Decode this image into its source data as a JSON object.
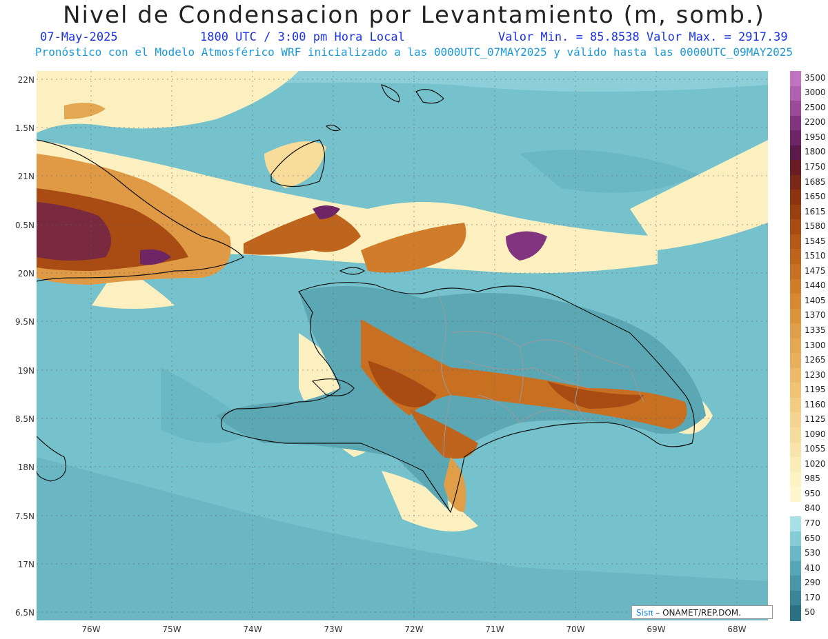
{
  "title": "Nivel de Condensacion por Levantamiento (m, somb.)",
  "date": "07-May-2025",
  "time": "1800 UTC / 3:00 pm Hora Local",
  "minmax": "Valor Min. = 85.8538  Valor Max. = 2917.39",
  "forecast": "Pronóstico con el Modelo Atmosférico WRF inicializado a las 0000UTC_07MAY2025 y válido hasta las  0000UTC_09MAY2025",
  "lat_labels": [
    "22N",
    "1.5N",
    "21N",
    "0.5N",
    "20N",
    "9.5N",
    "19N",
    "8.5N",
    "18N",
    "7.5N",
    "17N",
    "6.5N"
  ],
  "lon_labels": [
    "76W",
    "75W",
    "74W",
    "73W",
    "72W",
    "71W",
    "70W",
    "69W",
    "68W"
  ],
  "legend": {
    "levels": [
      "3500",
      "3000",
      "2500",
      "2200",
      "1950",
      "1800",
      "1750",
      "1685",
      "1650",
      "1615",
      "1580",
      "1545",
      "1510",
      "1475",
      "1440",
      "1405",
      "1370",
      "1335",
      "1300",
      "1265",
      "1230",
      "1195",
      "1160",
      "1125",
      "1090",
      "1055",
      "1020",
      "985",
      "950",
      "840",
      "770",
      "650",
      "530",
      "410",
      "290",
      "170",
      "50"
    ],
    "colors": [
      "#c074c0",
      "#b060b0",
      "#9a4a96",
      "#82357e",
      "#6e2565",
      "#5a1a4c",
      "#6a1c22",
      "#7c2818",
      "#8c3410",
      "#9a4010",
      "#a84c14",
      "#b45818",
      "#bf641c",
      "#c87022",
      "#d07c2a",
      "#d68832",
      "#dc943c",
      "#e09e48",
      "#e4a852",
      "#e8b05c",
      "#ecba68",
      "#f0c474",
      "#f2cc82",
      "#f4d490",
      "#f6dc9c",
      "#f8e4aa",
      "#faecb6",
      "#fcf2c2",
      "#fef6cc",
      "#ffffff",
      "#a8e0e8",
      "#86ccd6",
      "#6ab8c6",
      "#55a6b6",
      "#4896a6",
      "#3a8696",
      "#2a7282"
    ]
  },
  "credit": {
    "brand": "Sisπ",
    "text": "– ONAMET/REP.DOM."
  }
}
